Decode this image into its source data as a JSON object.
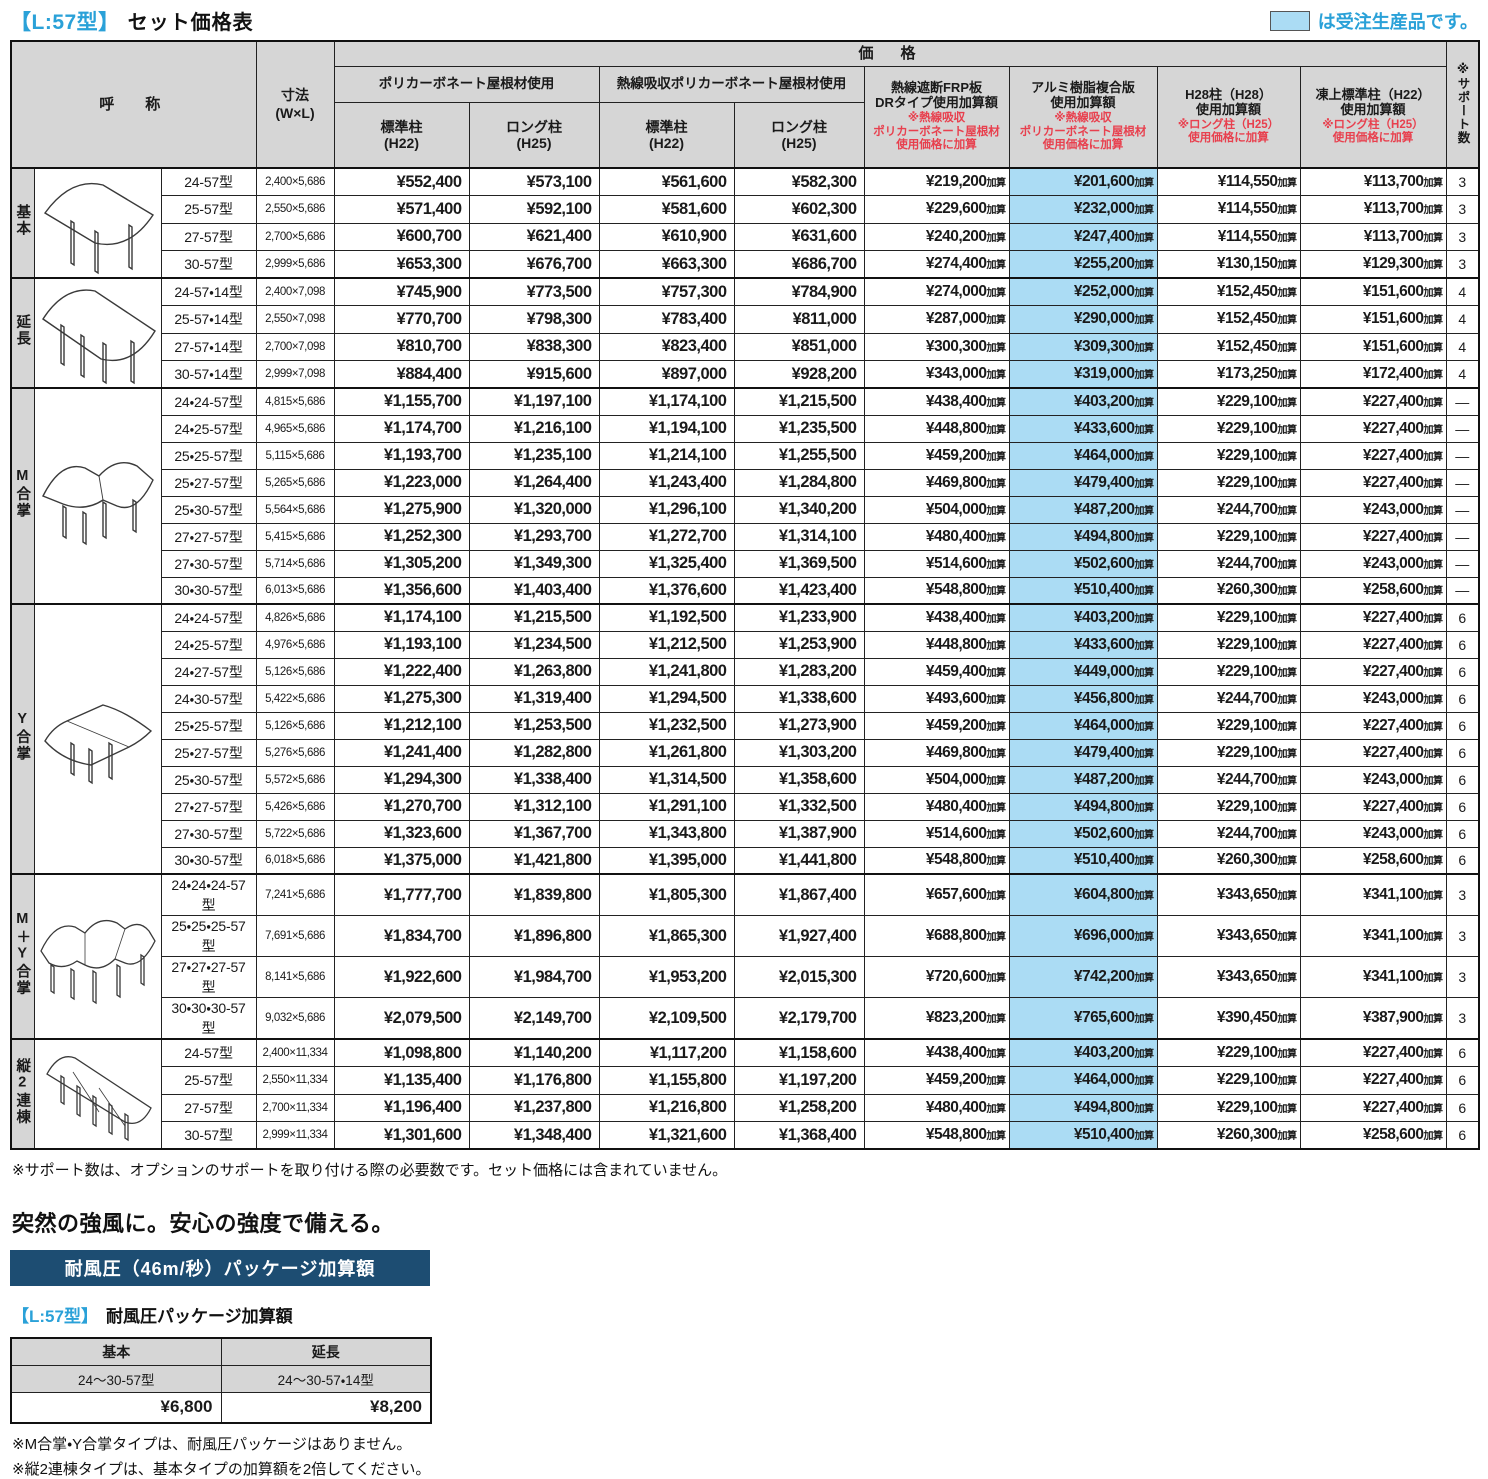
{
  "page": {
    "title_tag": "【L:57型】",
    "title": "セット価格表",
    "legend_text": "は受注生産品です。"
  },
  "colors": {
    "accent_blue": "#2aa1d8",
    "highlight_blue": "#abdcf4",
    "header_gray": "#d6d6d6",
    "note_red": "#e8404e",
    "banner_navy": "#1d4d72"
  },
  "table": {
    "header": {
      "name": "呼　称",
      "dims": "寸法\n(W×L)",
      "price": "価　格",
      "support": "※サポート数",
      "group1": "ポリカーボネート屋根材使用",
      "group2": "熱線吸収ポリカーボネート屋根材使用",
      "std_post": "標準柱\n(H22)",
      "long_post": "ロング柱\n(H25)",
      "kasan_suffix": "加算",
      "add_cols": [
        {
          "title": "熱線遮断FRP板\nDRタイプ使用加算額",
          "note": "※熱線吸収\nポリカーボネート屋根材\n使用価格に加算"
        },
        {
          "title": "アルミ樹脂複合版\n使用加算額",
          "note": "※熱線吸収\nポリカーボネート屋根材\n使用価格に加算"
        },
        {
          "title": "H28柱（H28）\n使用加算額",
          "note": "※ロング柱（H25）\n使用価格に加算"
        },
        {
          "title": "凍上標準柱（H22）\n使用加算額",
          "note": "※ロング柱（H25）\n使用価格に加算"
        }
      ]
    },
    "groups": [
      {
        "label": "基本",
        "illustration": "basic",
        "rows": [
          {
            "model": "24-57型",
            "dims": "2,400×5,686",
            "prices": [
              "¥552,400",
              "¥573,100",
              "¥561,600",
              "¥582,300"
            ],
            "additions": [
              "¥219,200",
              "¥201,600",
              "¥114,550",
              "¥113,700"
            ],
            "support": "3"
          },
          {
            "model": "25-57型",
            "dims": "2,550×5,686",
            "prices": [
              "¥571,400",
              "¥592,100",
              "¥581,600",
              "¥602,300"
            ],
            "additions": [
              "¥229,600",
              "¥232,000",
              "¥114,550",
              "¥113,700"
            ],
            "support": "3"
          },
          {
            "model": "27-57型",
            "dims": "2,700×5,686",
            "prices": [
              "¥600,700",
              "¥621,400",
              "¥610,900",
              "¥631,600"
            ],
            "additions": [
              "¥240,200",
              "¥247,400",
              "¥114,550",
              "¥113,700"
            ],
            "support": "3"
          },
          {
            "model": "30-57型",
            "dims": "2,999×5,686",
            "prices": [
              "¥653,300",
              "¥676,700",
              "¥663,300",
              "¥686,700"
            ],
            "additions": [
              "¥274,400",
              "¥255,200",
              "¥130,150",
              "¥129,300"
            ],
            "support": "3"
          }
        ]
      },
      {
        "label": "延長",
        "illustration": "extension",
        "rows": [
          {
            "model": "24-57・14型",
            "dims": "2,400×7,098",
            "prices": [
              "¥745,900",
              "¥773,500",
              "¥757,300",
              "¥784,900"
            ],
            "additions": [
              "¥274,000",
              "¥252,000",
              "¥152,450",
              "¥151,600"
            ],
            "support": "4"
          },
          {
            "model": "25-57・14型",
            "dims": "2,550×7,098",
            "prices": [
              "¥770,700",
              "¥798,300",
              "¥783,400",
              "¥811,000"
            ],
            "additions": [
              "¥287,000",
              "¥290,000",
              "¥152,450",
              "¥151,600"
            ],
            "support": "4"
          },
          {
            "model": "27-57・14型",
            "dims": "2,700×7,098",
            "prices": [
              "¥810,700",
              "¥838,300",
              "¥823,400",
              "¥851,000"
            ],
            "additions": [
              "¥300,300",
              "¥309,300",
              "¥152,450",
              "¥151,600"
            ],
            "support": "4"
          },
          {
            "model": "30-57・14型",
            "dims": "2,999×7,098",
            "prices": [
              "¥884,400",
              "¥915,600",
              "¥897,000",
              "¥928,200"
            ],
            "additions": [
              "¥343,000",
              "¥319,000",
              "¥173,250",
              "¥172,400"
            ],
            "support": "4"
          }
        ]
      },
      {
        "label": "M合掌",
        "illustration": "m-gassho",
        "rows": [
          {
            "model": "24・24-57型",
            "dims": "4,815×5,686",
            "prices": [
              "¥1,155,700",
              "¥1,197,100",
              "¥1,174,100",
              "¥1,215,500"
            ],
            "additions": [
              "¥438,400",
              "¥403,200",
              "¥229,100",
              "¥227,400"
            ],
            "support": "—"
          },
          {
            "model": "24・25-57型",
            "dims": "4,965×5,686",
            "prices": [
              "¥1,174,700",
              "¥1,216,100",
              "¥1,194,100",
              "¥1,235,500"
            ],
            "additions": [
              "¥448,800",
              "¥433,600",
              "¥229,100",
              "¥227,400"
            ],
            "support": "—"
          },
          {
            "model": "25・25-57型",
            "dims": "5,115×5,686",
            "prices": [
              "¥1,193,700",
              "¥1,235,100",
              "¥1,214,100",
              "¥1,255,500"
            ],
            "additions": [
              "¥459,200",
              "¥464,000",
              "¥229,100",
              "¥227,400"
            ],
            "support": "—"
          },
          {
            "model": "25・27-57型",
            "dims": "5,265×5,686",
            "prices": [
              "¥1,223,000",
              "¥1,264,400",
              "¥1,243,400",
              "¥1,284,800"
            ],
            "additions": [
              "¥469,800",
              "¥479,400",
              "¥229,100",
              "¥227,400"
            ],
            "support": "—"
          },
          {
            "model": "25・30-57型",
            "dims": "5,564×5,686",
            "prices": [
              "¥1,275,900",
              "¥1,320,000",
              "¥1,296,100",
              "¥1,340,200"
            ],
            "additions": [
              "¥504,000",
              "¥487,200",
              "¥244,700",
              "¥243,000"
            ],
            "support": "—"
          },
          {
            "model": "27・27-57型",
            "dims": "5,415×5,686",
            "prices": [
              "¥1,252,300",
              "¥1,293,700",
              "¥1,272,700",
              "¥1,314,100"
            ],
            "additions": [
              "¥480,400",
              "¥494,800",
              "¥229,100",
              "¥227,400"
            ],
            "support": "—"
          },
          {
            "model": "27・30-57型",
            "dims": "5,714×5,686",
            "prices": [
              "¥1,305,200",
              "¥1,349,300",
              "¥1,325,400",
              "¥1,369,500"
            ],
            "additions": [
              "¥514,600",
              "¥502,600",
              "¥244,700",
              "¥243,000"
            ],
            "support": "—"
          },
          {
            "model": "30・30-57型",
            "dims": "6,013×5,686",
            "prices": [
              "¥1,356,600",
              "¥1,403,400",
              "¥1,376,600",
              "¥1,423,400"
            ],
            "additions": [
              "¥548,800",
              "¥510,400",
              "¥260,300",
              "¥258,600"
            ],
            "support": "—"
          }
        ]
      },
      {
        "label": "Y合掌",
        "illustration": "y-gassho",
        "rows": [
          {
            "model": "24・24-57型",
            "dims": "4,826×5,686",
            "prices": [
              "¥1,174,100",
              "¥1,215,500",
              "¥1,192,500",
              "¥1,233,900"
            ],
            "additions": [
              "¥438,400",
              "¥403,200",
              "¥229,100",
              "¥227,400"
            ],
            "support": "6"
          },
          {
            "model": "24・25-57型",
            "dims": "4,976×5,686",
            "prices": [
              "¥1,193,100",
              "¥1,234,500",
              "¥1,212,500",
              "¥1,253,900"
            ],
            "additions": [
              "¥448,800",
              "¥433,600",
              "¥229,100",
              "¥227,400"
            ],
            "support": "6"
          },
          {
            "model": "24・27-57型",
            "dims": "5,126×5,686",
            "prices": [
              "¥1,222,400",
              "¥1,263,800",
              "¥1,241,800",
              "¥1,283,200"
            ],
            "additions": [
              "¥459,400",
              "¥449,000",
              "¥229,100",
              "¥227,400"
            ],
            "support": "6"
          },
          {
            "model": "24・30-57型",
            "dims": "5,422×5,686",
            "prices": [
              "¥1,275,300",
              "¥1,319,400",
              "¥1,294,500",
              "¥1,338,600"
            ],
            "additions": [
              "¥493,600",
              "¥456,800",
              "¥244,700",
              "¥243,000"
            ],
            "support": "6"
          },
          {
            "model": "25・25-57型",
            "dims": "5,126×5,686",
            "prices": [
              "¥1,212,100",
              "¥1,253,500",
              "¥1,232,500",
              "¥1,273,900"
            ],
            "additions": [
              "¥459,200",
              "¥464,000",
              "¥229,100",
              "¥227,400"
            ],
            "support": "6"
          },
          {
            "model": "25・27-57型",
            "dims": "5,276×5,686",
            "prices": [
              "¥1,241,400",
              "¥1,282,800",
              "¥1,261,800",
              "¥1,303,200"
            ],
            "additions": [
              "¥469,800",
              "¥479,400",
              "¥229,100",
              "¥227,400"
            ],
            "support": "6"
          },
          {
            "model": "25・30-57型",
            "dims": "5,572×5,686",
            "prices": [
              "¥1,294,300",
              "¥1,338,400",
              "¥1,314,500",
              "¥1,358,600"
            ],
            "additions": [
              "¥504,000",
              "¥487,200",
              "¥244,700",
              "¥243,000"
            ],
            "support": "6"
          },
          {
            "model": "27・27-57型",
            "dims": "5,426×5,686",
            "prices": [
              "¥1,270,700",
              "¥1,312,100",
              "¥1,291,100",
              "¥1,332,500"
            ],
            "additions": [
              "¥480,400",
              "¥494,800",
              "¥229,100",
              "¥227,400"
            ],
            "support": "6"
          },
          {
            "model": "27・30-57型",
            "dims": "5,722×5,686",
            "prices": [
              "¥1,323,600",
              "¥1,367,700",
              "¥1,343,800",
              "¥1,387,900"
            ],
            "additions": [
              "¥514,600",
              "¥502,600",
              "¥244,700",
              "¥243,000"
            ],
            "support": "6"
          },
          {
            "model": "30・30-57型",
            "dims": "6,018×5,686",
            "prices": [
              "¥1,375,000",
              "¥1,421,800",
              "¥1,395,000",
              "¥1,441,800"
            ],
            "additions": [
              "¥548,800",
              "¥510,400",
              "¥260,300",
              "¥258,600"
            ],
            "support": "6"
          }
        ]
      },
      {
        "label": "M＋Y合掌",
        "illustration": "my-gassho",
        "rows": [
          {
            "model": "24・24・24-57型",
            "dims": "7,241×5,686",
            "prices": [
              "¥1,777,700",
              "¥1,839,800",
              "¥1,805,300",
              "¥1,867,400"
            ],
            "additions": [
              "¥657,600",
              "¥604,800",
              "¥343,650",
              "¥341,100"
            ],
            "support": "3"
          },
          {
            "model": "25・25・25-57型",
            "dims": "7,691×5,686",
            "prices": [
              "¥1,834,700",
              "¥1,896,800",
              "¥1,865,300",
              "¥1,927,400"
            ],
            "additions": [
              "¥688,800",
              "¥696,000",
              "¥343,650",
              "¥341,100"
            ],
            "support": "3"
          },
          {
            "model": "27・27・27-57型",
            "dims": "8,141×5,686",
            "prices": [
              "¥1,922,600",
              "¥1,984,700",
              "¥1,953,200",
              "¥2,015,300"
            ],
            "additions": [
              "¥720,600",
              "¥742,200",
              "¥343,650",
              "¥341,100"
            ],
            "support": "3"
          },
          {
            "model": "30・30・30-57型",
            "dims": "9,032×5,686",
            "prices": [
              "¥2,079,500",
              "¥2,149,700",
              "¥2,109,500",
              "¥2,179,700"
            ],
            "additions": [
              "¥823,200",
              "¥765,600",
              "¥390,450",
              "¥387,900"
            ],
            "support": "3"
          }
        ]
      },
      {
        "label": "縦2連棟",
        "illustration": "tate-2rento",
        "rows": [
          {
            "model": "24-57型",
            "dims": "2,400×11,334",
            "prices": [
              "¥1,098,800",
              "¥1,140,200",
              "¥1,117,200",
              "¥1,158,600"
            ],
            "additions": [
              "¥438,400",
              "¥403,200",
              "¥229,100",
              "¥227,400"
            ],
            "support": "6"
          },
          {
            "model": "25-57型",
            "dims": "2,550×11,334",
            "prices": [
              "¥1,135,400",
              "¥1,176,800",
              "¥1,155,800",
              "¥1,197,200"
            ],
            "additions": [
              "¥459,200",
              "¥464,000",
              "¥229,100",
              "¥227,400"
            ],
            "support": "6"
          },
          {
            "model": "27-57型",
            "dims": "2,700×11,334",
            "prices": [
              "¥1,196,400",
              "¥1,237,800",
              "¥1,216,800",
              "¥1,258,200"
            ],
            "additions": [
              "¥480,400",
              "¥494,800",
              "¥229,100",
              "¥227,400"
            ],
            "support": "6"
          },
          {
            "model": "30-57型",
            "dims": "2,999×11,334",
            "prices": [
              "¥1,301,600",
              "¥1,348,400",
              "¥1,321,600",
              "¥1,368,400"
            ],
            "additions": [
              "¥548,800",
              "¥510,400",
              "¥260,300",
              "¥258,600"
            ],
            "support": "6"
          }
        ]
      }
    ]
  },
  "footnotes": {
    "support": "※サポート数は、オプションのサポートを取り付ける際の必要数です。セット価格には含まれていません。",
    "wind1": "※M合掌・Y合掌タイプは、耐風圧パッケージはありません。",
    "wind2": "※縦2連棟タイプは、基本タイプの加算額を2倍してください。"
  },
  "wind": {
    "heading": "突然の強風に。安心の強度で備える。",
    "banner": "耐風圧（46m/秒）パッケージ加算額",
    "sub_tag": "【L:57型】",
    "sub_title": "耐風圧パッケージ加算額",
    "cols": [
      {
        "type": "基本",
        "range": "24～30-57型",
        "price": "¥6,800"
      },
      {
        "type": "延長",
        "range": "24～30-57・14型",
        "price": "¥8,200"
      }
    ]
  }
}
